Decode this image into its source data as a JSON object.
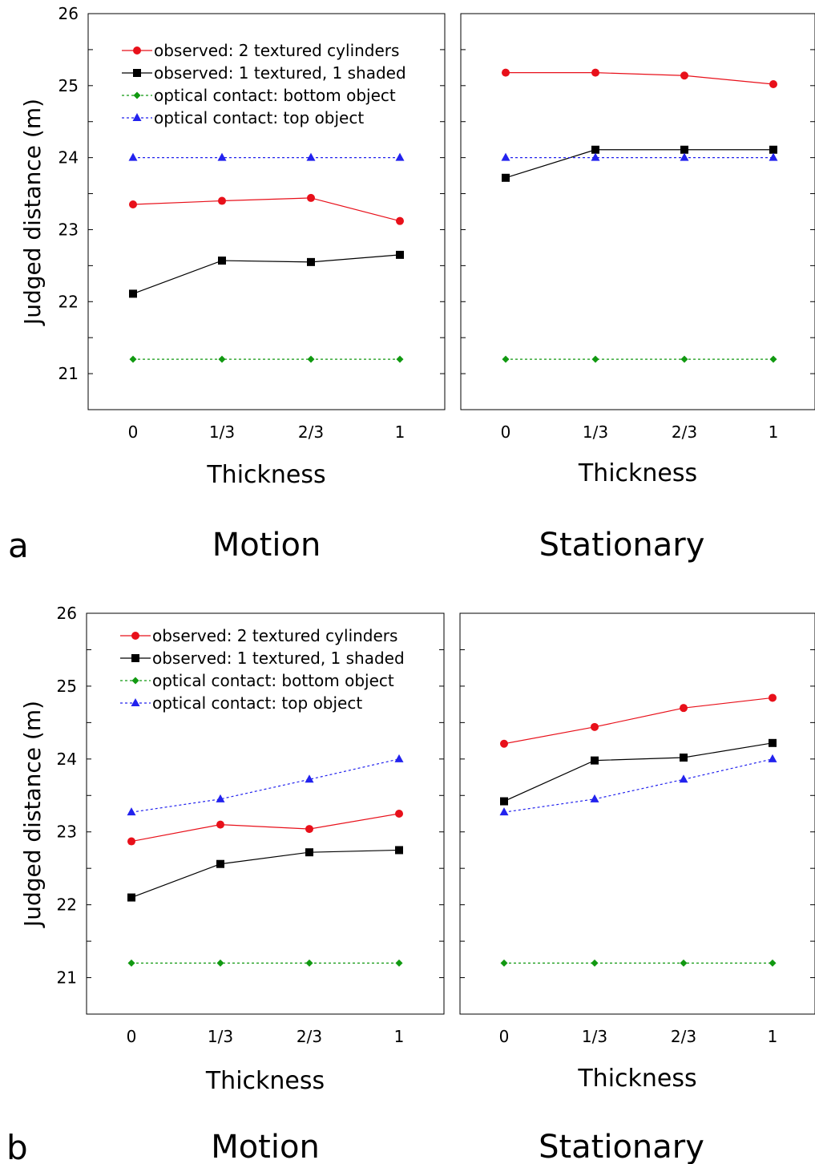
{
  "figure": {
    "panel_labels": [
      "a",
      "b"
    ],
    "conditions": [
      "Motion",
      "Stationary"
    ]
  },
  "colors": {
    "observed_textured": "#e8101a",
    "observed_shaded": "#000000",
    "contact_bottom": "#119911",
    "contact_top": "#2222ee"
  },
  "chart_data": [
    {
      "id": "a-motion",
      "type": "line",
      "panel": "a",
      "condition": "Motion",
      "title": "",
      "xlabel": "Thickness",
      "ylabel": "Judged distance (m)",
      "categories": [
        "0",
        "1/3",
        "2/3",
        "1"
      ],
      "ylim": [
        20.5,
        26
      ],
      "yticks": [
        21,
        22,
        23,
        24,
        25,
        26
      ],
      "legend": "top-left",
      "grid": false,
      "series": [
        {
          "name": "observed: 2 textured cylinders",
          "values": [
            23.35,
            23.4,
            23.44,
            23.12
          ]
        },
        {
          "name": "observed: 1 textured, 1 shaded",
          "values": [
            22.11,
            22.57,
            22.55,
            22.65
          ]
        },
        {
          "name": "optical contact: bottom object",
          "values": [
            21.2,
            21.2,
            21.2,
            21.2
          ]
        },
        {
          "name": "optical contact: top object",
          "values": [
            24.0,
            24.0,
            24.0,
            24.0
          ]
        }
      ]
    },
    {
      "id": "a-stationary",
      "type": "line",
      "panel": "a",
      "condition": "Stationary",
      "title": "",
      "xlabel": "Thickness",
      "ylabel": "",
      "categories": [
        "0",
        "1/3",
        "2/3",
        "1"
      ],
      "ylim": [
        20.5,
        26
      ],
      "yticks": [
        21,
        22,
        23,
        24,
        25,
        26
      ],
      "legend": "none",
      "grid": false,
      "series": [
        {
          "values": [
            25.18,
            25.18,
            25.14,
            25.02
          ]
        },
        {
          "values": [
            23.72,
            24.11,
            24.11,
            24.11
          ]
        },
        {
          "values": [
            21.2,
            21.2,
            21.2,
            21.2
          ]
        },
        {
          "values": [
            24.0,
            24.0,
            24.0,
            24.0
          ]
        }
      ]
    },
    {
      "id": "b-motion",
      "type": "line",
      "panel": "b",
      "condition": "Motion",
      "title": "",
      "xlabel": "Thickness",
      "ylabel": "Judged distance (m)",
      "categories": [
        "0",
        "1/3",
        "2/3",
        "1"
      ],
      "ylim": [
        20.5,
        26
      ],
      "yticks": [
        21,
        22,
        23,
        24,
        25,
        26
      ],
      "legend": "top-left",
      "grid": false,
      "series": [
        {
          "name": "observed: 2 textured cylinders",
          "values": [
            22.87,
            23.1,
            23.04,
            23.25
          ]
        },
        {
          "name": "observed: 1 textured, 1 shaded",
          "values": [
            22.1,
            22.56,
            22.72,
            22.75
          ]
        },
        {
          "name": "optical contact: bottom object",
          "values": [
            21.2,
            21.2,
            21.2,
            21.2
          ]
        },
        {
          "name": "optical contact: top object",
          "values": [
            23.27,
            23.45,
            23.72,
            24.0
          ]
        }
      ]
    },
    {
      "id": "b-stationary",
      "type": "line",
      "panel": "b",
      "condition": "Stationary",
      "title": "",
      "xlabel": "Thickness",
      "ylabel": "",
      "categories": [
        "0",
        "1/3",
        "2/3",
        "1"
      ],
      "ylim": [
        20.5,
        26
      ],
      "yticks": [
        21,
        22,
        23,
        24,
        25,
        26
      ],
      "legend": "none",
      "grid": false,
      "series": [
        {
          "values": [
            24.21,
            24.44,
            24.7,
            24.84
          ]
        },
        {
          "values": [
            23.42,
            23.98,
            24.02,
            24.22
          ]
        },
        {
          "values": [
            21.2,
            21.2,
            21.2,
            21.2
          ]
        },
        {
          "values": [
            23.27,
            23.45,
            23.72,
            24.0
          ]
        }
      ]
    }
  ]
}
